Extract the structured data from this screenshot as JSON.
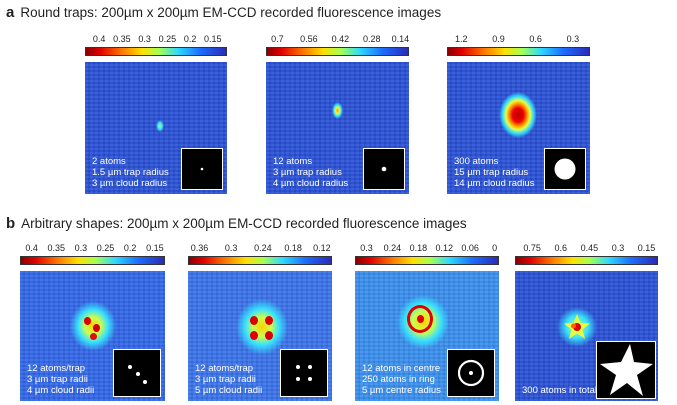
{
  "section_a": {
    "letter": "a",
    "title": "Round traps: 200µm x 200µm EM-CCD recorded fluorescence images",
    "panels": [
      {
        "ticks": [
          "0.4",
          "0.35",
          "0.3",
          "0.25",
          "0.2",
          "0.15"
        ],
        "lines": [
          "2 atoms",
          "1.5 µm trap radius",
          "3 µm cloud radius"
        ],
        "inset": "small-dot"
      },
      {
        "ticks": [
          "0.7",
          "0.56",
          "0.42",
          "0.28",
          "0.14"
        ],
        "lines": [
          "12 atoms",
          "3 µm trap radius",
          "4 µm cloud radius"
        ],
        "inset": "medium-dot"
      },
      {
        "ticks": [
          "1.2",
          "0.9",
          "0.6",
          "0.3"
        ],
        "lines": [
          "300 atoms",
          "15 µm trap radius",
          "14 µm cloud radius"
        ],
        "inset": "large-disk"
      }
    ]
  },
  "section_b": {
    "letter": "b",
    "title": "Arbitrary shapes: 200µm x 200µm EM-CCD recorded fluorescence images",
    "panels": [
      {
        "ticks": [
          "0.4",
          "0.35",
          "0.3",
          "0.25",
          "0.2",
          "0.15"
        ],
        "lines": [
          "12 atoms/trap",
          "3 µm trap radii",
          "4 µm cloud radii"
        ],
        "inset": "three-dots"
      },
      {
        "ticks": [
          "0.36",
          "0.3",
          "0.24",
          "0.18",
          "0.12"
        ],
        "lines": [
          "12 atoms/trap",
          "3 µm trap radii",
          "5 µm cloud radii"
        ],
        "inset": "four-dots"
      },
      {
        "ticks": [
          "0.3",
          "0.24",
          "0.18",
          "0.12",
          "0.06",
          "0"
        ],
        "lines": [
          "12 atoms in centre",
          "250 atoms in ring",
          "5 µm centre radius"
        ],
        "inset": "ring-dot"
      },
      {
        "ticks": [
          "0.75",
          "0.6",
          "0.45",
          "0.3",
          "0.15"
        ],
        "lines": [
          "300 atoms in total"
        ],
        "inset": "star"
      }
    ]
  },
  "colors": {
    "background": "#2a52d6",
    "caption": "#ffffff",
    "inset": "#000000"
  }
}
